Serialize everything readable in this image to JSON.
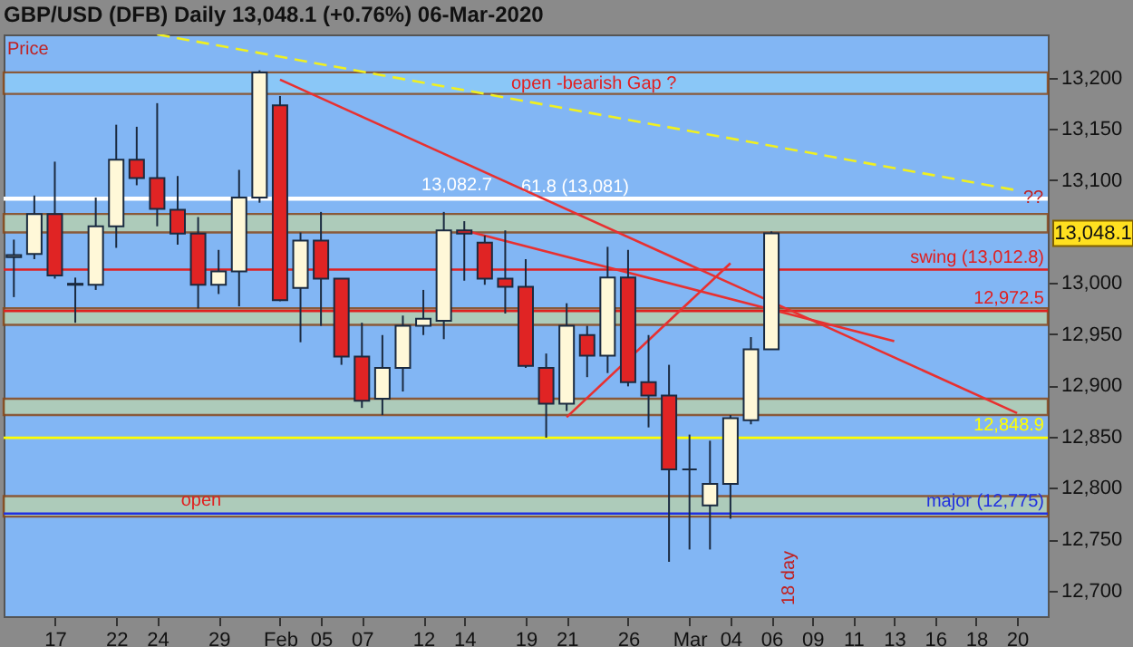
{
  "chart_data": {
    "type": "candlestick",
    "title": "GBP/USD (DFB)   Daily   13,048.1 (+0.76%)   06-Mar-2020",
    "categories": [
      null,
      null,
      "17",
      null,
      null,
      "22",
      null,
      "24",
      null,
      null,
      "29",
      null,
      null,
      "Feb",
      null,
      "05",
      null,
      "07",
      null,
      null,
      "12",
      null,
      "14",
      null,
      null,
      "19",
      null,
      "21",
      null,
      null,
      "26",
      null,
      null,
      "Mar",
      null,
      "04",
      null,
      "06",
      null,
      "09",
      null,
      "11",
      null,
      "13",
      null,
      "16",
      null,
      "18",
      null,
      "20",
      null
    ],
    "ohlc": [
      [
        13027,
        13042,
        12986,
        13025
      ],
      [
        13028,
        13085,
        13023,
        13067
      ],
      [
        13067,
        13118,
        13004,
        13007
      ],
      [
        12999,
        13005,
        12961,
        12998
      ],
      [
        12998,
        13083,
        12993,
        13055
      ],
      [
        13055,
        13154,
        13034,
        13120
      ],
      [
        13120,
        13152,
        13095,
        13102
      ],
      [
        13102,
        13175,
        13055,
        13072
      ],
      [
        13071,
        13104,
        13037,
        13048
      ],
      [
        13048,
        13064,
        12975,
        12998
      ],
      [
        12998,
        13032,
        12989,
        13011
      ],
      [
        13011,
        13110,
        12977,
        13083
      ],
      [
        13083,
        13207,
        13078,
        13205
      ],
      [
        13173,
        13182,
        12982,
        12983
      ],
      [
        12995,
        13049,
        12942,
        13041
      ],
      [
        13041,
        13069,
        12958,
        13004
      ],
      [
        13004,
        13004,
        12920,
        12928
      ],
      [
        12928,
        12961,
        12878,
        12885
      ],
      [
        12887,
        12949,
        12871,
        12917
      ],
      [
        12917,
        12968,
        12894,
        12958
      ],
      [
        12958,
        12993,
        12949,
        12965
      ],
      [
        12963,
        13069,
        12945,
        13051
      ],
      [
        13051,
        13060,
        13002,
        13048
      ],
      [
        13039,
        13046,
        12998,
        13004
      ],
      [
        13004,
        13051,
        12970,
        12996
      ],
      [
        12996,
        13023,
        12917,
        12919
      ],
      [
        12917,
        12931,
        12849,
        12882
      ],
      [
        12882,
        12980,
        12875,
        12958
      ],
      [
        12949,
        12958,
        12908,
        12929
      ],
      [
        12929,
        13035,
        12912,
        13005
      ],
      [
        13005,
        13032,
        12899,
        12903
      ],
      [
        12903,
        12949,
        12859,
        12890
      ],
      [
        12890,
        12920,
        12728,
        12818
      ],
      [
        12818,
        12852,
        12740,
        12818
      ],
      [
        12783,
        12846,
        12740,
        12804
      ],
      [
        12804,
        12871,
        12770,
        12868
      ],
      [
        12866,
        12947,
        12862,
        12935
      ],
      [
        12935,
        13050,
        12935,
        13048.1
      ],
      null,
      null,
      null,
      null,
      null,
      null,
      null,
      null,
      null,
      null,
      null,
      null,
      null
    ],
    "colors": [
      "#fff8d8",
      "#fff8d8",
      "#e02424",
      "#fff8d8",
      "#fff8d8",
      "#fff8d8",
      "#e02424",
      "#e02424",
      "#e02424",
      "#e02424",
      "#fff8d8",
      "#fff8d8",
      "#fff8d8",
      "#e02424",
      "#fff8d8",
      "#e02424",
      "#e02424",
      "#e02424",
      "#fff8d8",
      "#fff8d8",
      "#fff8d8",
      "#fff8d8",
      "#e02424",
      "#e02424",
      "#e02424",
      "#e02424",
      "#e02424",
      "#fff8d8",
      "#e02424",
      "#fff8d8",
      "#e02424",
      "#e02424",
      "#e02424",
      "#1a2a40",
      "#fff8d8",
      "#fff8d8",
      "#fff8d8",
      "#fff8d8",
      null,
      null,
      null,
      null,
      null,
      null,
      null,
      null,
      null,
      null,
      null,
      null,
      null
    ],
    "series": [
      {
        "type": "line",
        "color": "#e83030",
        "x": [
          "Feb",
          "20"
        ],
        "values": [
          13198,
          12873
        ]
      },
      {
        "type": "line",
        "color": "#e83030",
        "x": [
          "14",
          "13"
        ],
        "values": [
          13051,
          12943
        ]
      },
      {
        "type": "line",
        "color": "#e83030",
        "x": [
          "21",
          "04"
        ],
        "values": [
          12869,
          13019
        ]
      },
      {
        "type": "line",
        "color": "#f0f020",
        "line_style": "dashed",
        "x": [
          "24",
          "20"
        ],
        "values": [
          13242,
          13090
        ]
      }
    ],
    "ylim": [
      12675,
      13242
    ],
    "yticks": [
      {
        "value": 12700,
        "label": "12,700"
      },
      {
        "value": 12750,
        "label": "12,750"
      },
      {
        "value": 12800,
        "label": "12,800"
      },
      {
        "value": 12850,
        "label": "12,850"
      },
      {
        "value": 12900,
        "label": "12,900"
      },
      {
        "value": 12950,
        "label": "12,950"
      },
      {
        "value": 13000,
        "label": "13,000"
      },
      {
        "value": 13100,
        "label": "13,100"
      },
      {
        "value": 13150,
        "label": "13,150"
      },
      {
        "value": 13200,
        "label": "13,200"
      }
    ],
    "ref_lines": [
      {
        "axis": "y",
        "value": 13082.7,
        "label": "13,082.7",
        "color": "#ffffff"
      },
      {
        "axis": "y",
        "value": 13081,
        "label": "61.8 (13,081)",
        "color": "#ffffff"
      },
      {
        "axis": "y",
        "value": 13012.8,
        "label": "swing (13,012.8)",
        "color": "#e02020"
      },
      {
        "axis": "y",
        "value": 12972.5,
        "label": "12,972.5",
        "color": "#e02020"
      },
      {
        "axis": "y",
        "value": 12848.9,
        "label": "12,848.9",
        "color": "#ffff00"
      },
      {
        "axis": "y",
        "value": 12775,
        "label": "major (12,775)",
        "color": "#2030e0"
      }
    ],
    "bands": [
      {
        "axis": "y",
        "from": 13184,
        "to": 13205,
        "label": "open -bearish Gap ?",
        "color": "#8ccaf8"
      },
      {
        "axis": "y",
        "from": 13049,
        "to": 13067,
        "color": "#b5cfb0"
      },
      {
        "axis": "y",
        "from": 12959,
        "to": 12975,
        "color": "#b5cfb0"
      },
      {
        "axis": "y",
        "from": 12871,
        "to": 12887,
        "color": "#b5cfb0"
      },
      {
        "axis": "y",
        "from": 12772,
        "to": 12792,
        "color": "#b5cfb0"
      }
    ],
    "annotations": [
      "Price",
      "open",
      "??",
      "18 day",
      {
        "text": "13,048.1",
        "y": 13048.1
      }
    ],
    "grid": false
  }
}
